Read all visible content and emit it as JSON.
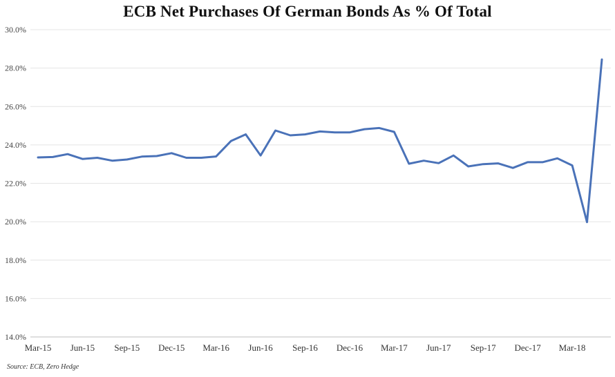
{
  "chart_data": {
    "type": "line",
    "title": "ECB Net Purchases Of German Bonds As % Of Total",
    "source": "Source: ECB, Zero Hedge",
    "xlabel": "",
    "ylabel": "",
    "ylim": [
      14.0,
      30.0
    ],
    "y_ticks": [
      "14.0%",
      "16.0%",
      "18.0%",
      "20.0%",
      "22.0%",
      "24.0%",
      "26.0%",
      "28.0%",
      "30.0%"
    ],
    "y_tick_values": [
      14,
      16,
      18,
      20,
      22,
      24,
      26,
      28,
      30
    ],
    "x_tick_labels": [
      "Mar-15",
      "Jun-15",
      "Sep-15",
      "Dec-15",
      "Mar-16",
      "Jun-16",
      "Sep-16",
      "Dec-16",
      "Mar-17",
      "Jun-17",
      "Sep-17",
      "Dec-17",
      "Mar-18"
    ],
    "grid": "horizontal",
    "line_color": "#4a72b8",
    "x": [
      "Mar-15",
      "Apr-15",
      "May-15",
      "Jun-15",
      "Jul-15",
      "Aug-15",
      "Sep-15",
      "Oct-15",
      "Nov-15",
      "Dec-15",
      "Jan-16",
      "Feb-16",
      "Mar-16",
      "Apr-16",
      "May-16",
      "Jun-16",
      "Jul-16",
      "Aug-16",
      "Sep-16",
      "Oct-16",
      "Nov-16",
      "Dec-16",
      "Jan-17",
      "Feb-17",
      "Mar-17",
      "Apr-17",
      "May-17",
      "Jun-17",
      "Jul-17",
      "Aug-17",
      "Sep-17",
      "Oct-17",
      "Nov-17",
      "Dec-17",
      "Jan-18",
      "Feb-18",
      "Mar-18",
      "Apr-18",
      "May-18"
    ],
    "values": [
      23.35,
      23.37,
      23.52,
      23.27,
      23.33,
      23.18,
      23.24,
      23.39,
      23.42,
      23.57,
      23.33,
      23.33,
      23.4,
      24.2,
      24.55,
      23.45,
      24.75,
      24.5,
      24.55,
      24.7,
      24.65,
      24.65,
      24.82,
      24.88,
      24.68,
      23.02,
      23.18,
      23.05,
      23.45,
      22.88,
      23.0,
      23.04,
      22.8,
      23.1,
      23.1,
      23.3,
      22.93,
      19.98,
      28.45
    ]
  }
}
